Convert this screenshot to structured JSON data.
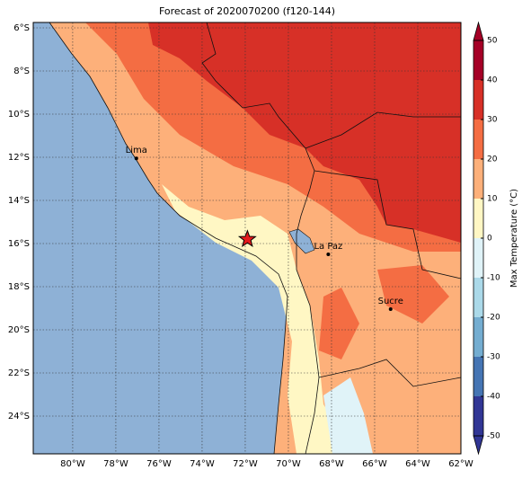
{
  "title": "Forecast of 2020070200 (f120-144)",
  "map": {
    "xlim": [
      -81.83,
      -62
    ],
    "ylim": [
      -25.75,
      -5.75
    ],
    "lon_ticks": [
      {
        "value": -80,
        "label": "80°W"
      },
      {
        "value": -78,
        "label": "78°W"
      },
      {
        "value": -76,
        "label": "76°W"
      },
      {
        "value": -74,
        "label": "74°W"
      },
      {
        "value": -72,
        "label": "72°W"
      },
      {
        "value": -70,
        "label": "70°W"
      },
      {
        "value": -68,
        "label": "68°W"
      },
      {
        "value": -66,
        "label": "66°W"
      },
      {
        "value": -64,
        "label": "64°W"
      },
      {
        "value": -62,
        "label": "62°W"
      }
    ],
    "lat_ticks": [
      {
        "value": -6,
        "label": "6°S"
      },
      {
        "value": -8,
        "label": "8°S"
      },
      {
        "value": -10,
        "label": "10°S"
      },
      {
        "value": -12,
        "label": "12°S"
      },
      {
        "value": -14,
        "label": "14°S"
      },
      {
        "value": -16,
        "label": "16°S"
      },
      {
        "value": -18,
        "label": "18°S"
      },
      {
        "value": -20,
        "label": "20°S"
      },
      {
        "value": -22,
        "label": "22°S"
      },
      {
        "value": -24,
        "label": "24°S"
      }
    ],
    "cities": [
      {
        "name": "Lima",
        "lon": -77.05,
        "lat": -12.05
      },
      {
        "name": "La Paz",
        "lon": -68.15,
        "lat": -16.5
      },
      {
        "name": "Sucre",
        "lon": -65.26,
        "lat": -19.04
      }
    ],
    "star": {
      "lon": -71.9,
      "lat": -15.8
    }
  },
  "colorbar": {
    "label": "Max Temperature (°C)",
    "lim": [
      -50,
      50
    ],
    "ticks": [
      -50,
      -40,
      -30,
      -20,
      -10,
      0,
      10,
      20,
      30,
      40,
      50
    ],
    "colors": [
      "#313695",
      "#4575b4",
      "#74add1",
      "#abd9e9",
      "#e0f3f8",
      "#fff7c4",
      "#fdb07a",
      "#f46d43",
      "#d73027",
      "#a50026"
    ]
  }
}
